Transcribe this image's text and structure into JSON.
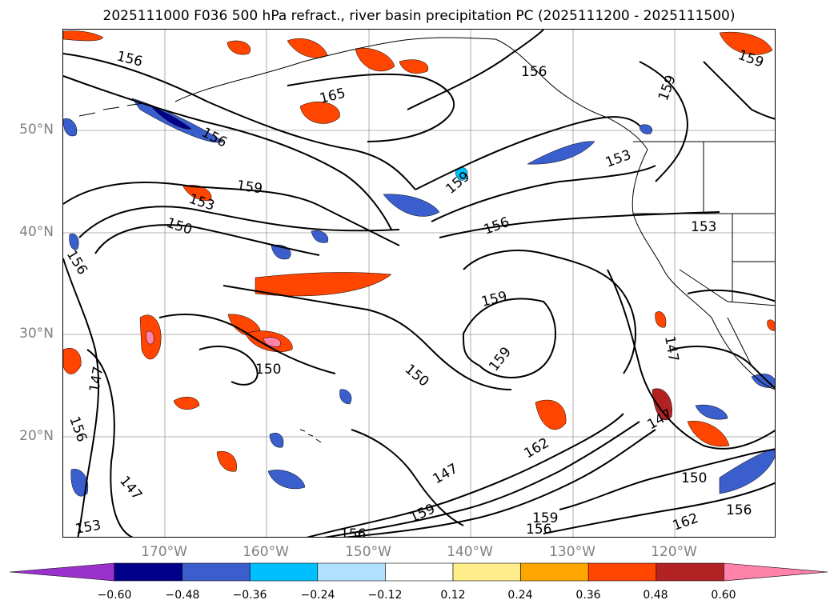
{
  "title": "2025111000 F036 500 hPa refract., river basin precipitation PC (2025111200 - 2025111500)",
  "lat_labels": [
    "50°N",
    "40°N",
    "30°N",
    "20°N"
  ],
  "lon_labels": [
    "170°W",
    "160°W",
    "150°W",
    "140°W",
    "130°W",
    "120°W"
  ],
  "contour_labels": [
    "156",
    "165",
    "156",
    "159",
    "153",
    "150",
    "156",
    "159",
    "156",
    "153",
    "150",
    "159",
    "159",
    "153",
    "147",
    "147",
    "156",
    "147",
    "153",
    "156",
    "159",
    "147",
    "156",
    "159",
    "147",
    "150",
    "162",
    "150",
    "162",
    "156",
    "159",
    "159",
    "156"
  ],
  "colorbar": {
    "ticks": [
      "−0.60",
      "−0.48",
      "−0.36",
      "−0.24",
      "−0.12",
      "0.12",
      "0.24",
      "0.36",
      "0.48",
      "0.60"
    ],
    "colors": [
      "#9932cc",
      "#00008b",
      "#3a5fcd",
      "#00bfff",
      "#b0e2ff",
      "#ffffff",
      "#ffec8b",
      "#ffa500",
      "#ff4500",
      "#b22222",
      "#ff82ab"
    ]
  },
  "colors": {
    "contour": "#000000",
    "grid": "#808080",
    "coast": "#000000"
  }
}
